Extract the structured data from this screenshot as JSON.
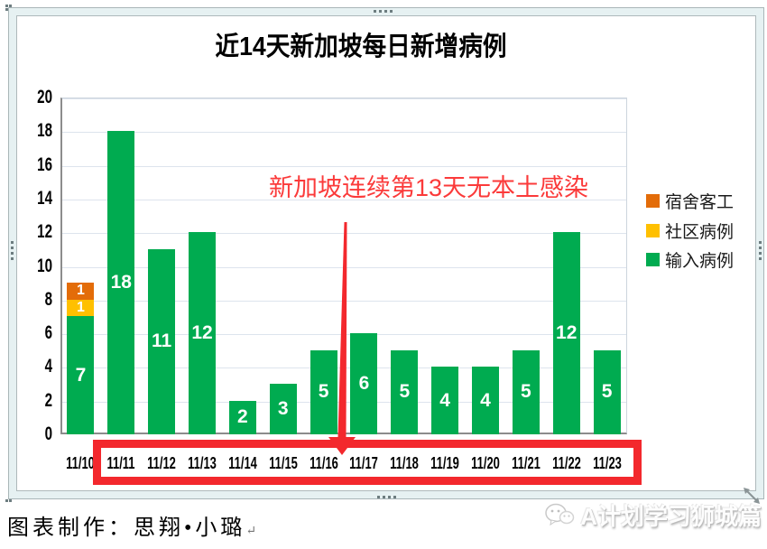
{
  "chart_data": {
    "type": "bar",
    "stacked": true,
    "title": "近14天新加坡每日新增病例",
    "categories": [
      "11/10",
      "11/11",
      "11/12",
      "11/13",
      "11/14",
      "11/15",
      "11/16",
      "11/17",
      "11/18",
      "11/19",
      "11/20",
      "11/21",
      "11/22",
      "11/23"
    ],
    "series": [
      {
        "name": "输入病例",
        "color": "#00ab50",
        "values": [
          7,
          18,
          11,
          12,
          2,
          3,
          5,
          6,
          5,
          4,
          4,
          5,
          12,
          5
        ]
      },
      {
        "name": "社区病例",
        "color": "#ffc000",
        "values": [
          1,
          0,
          0,
          0,
          0,
          0,
          0,
          0,
          0,
          0,
          0,
          0,
          0,
          0
        ]
      },
      {
        "name": "宿舍客工",
        "color": "#e36c09",
        "values": [
          1,
          0,
          0,
          0,
          0,
          0,
          0,
          0,
          0,
          0,
          0,
          0,
          0,
          0
        ]
      }
    ],
    "legend_order": [
      "宿舍客工",
      "社区病例",
      "输入病例"
    ],
    "legend_position": "right",
    "xlabel": "",
    "ylabel": "",
    "ylim": [
      0,
      20
    ],
    "ytick_step": 2,
    "grid": true,
    "annotation": {
      "text": "新加坡连续第13天无本土感染",
      "color": "#fb3a3a",
      "arrow_color": "#f3282d",
      "highlight_box_color": "#f3282d"
    }
  },
  "footer": {
    "caption": "图表制作：思翔•小璐",
    "caption_return_mark": "↵",
    "watermark": "A计划学习狮城篇"
  },
  "colors": {
    "selection_frame_fill": "#e6f1f2",
    "selection_frame_line": "#a9b6b8",
    "gridline": "#dde4ed",
    "axis_line": "#8c8c8c"
  }
}
